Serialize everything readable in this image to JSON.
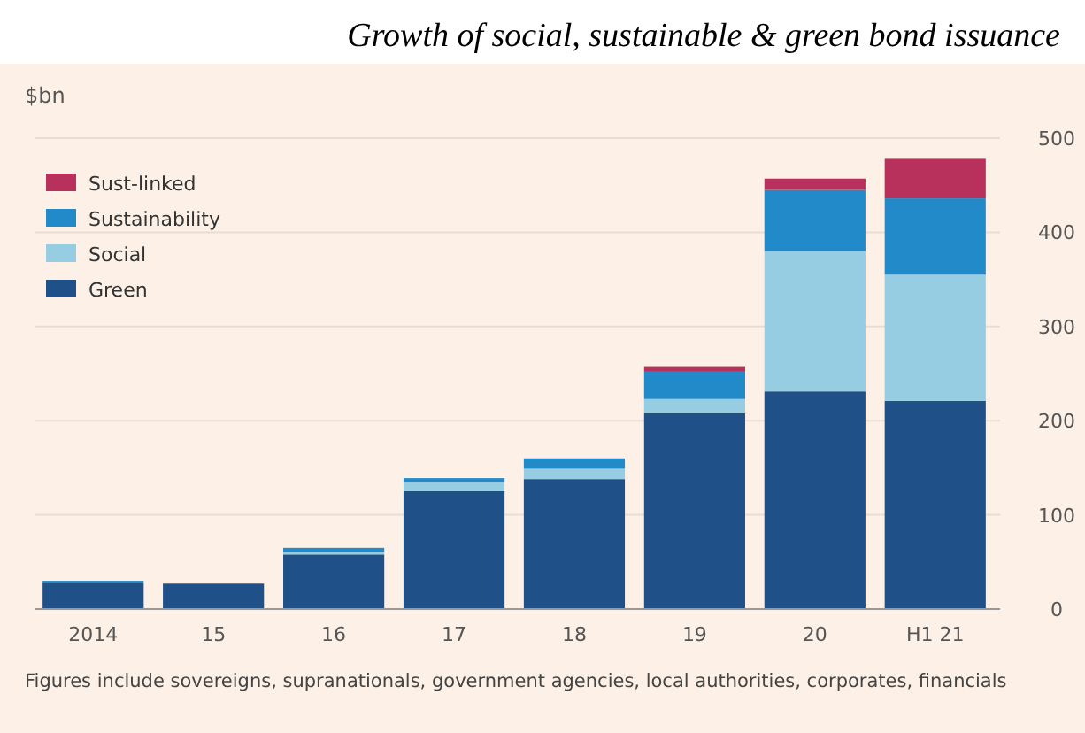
{
  "chart_data": {
    "type": "bar",
    "stacked": true,
    "title": "Growth of social, sustainable & green bond issuance",
    "ylabel": "$bn",
    "categories": [
      "2014",
      "15",
      "16",
      "17",
      "18",
      "19",
      "20",
      "H1 21"
    ],
    "series": [
      {
        "name": "Green",
        "color": "#1f5188",
        "values": [
          28,
          27,
          58,
          125,
          138,
          208,
          231,
          221
        ]
      },
      {
        "name": "Social",
        "color": "#96cde2",
        "values": [
          0,
          0,
          3,
          10,
          11,
          15,
          149,
          134
        ]
      },
      {
        "name": "Sustainability",
        "color": "#228ac8",
        "values": [
          2,
          0,
          4,
          4,
          11,
          29,
          65,
          81
        ]
      },
      {
        "name": "Sust-linked",
        "color": "#b7315c",
        "values": [
          0,
          0,
          0,
          0,
          0,
          5,
          12,
          42
        ]
      }
    ],
    "ylim": [
      0,
      500
    ],
    "yticks": [
      0,
      100,
      200,
      300,
      400,
      500
    ],
    "grid": "y",
    "legend": "top left",
    "annotations": [
      "Figures include sovereigns, supranationals, government agencies, local authorities, corporates, financials"
    ]
  }
}
